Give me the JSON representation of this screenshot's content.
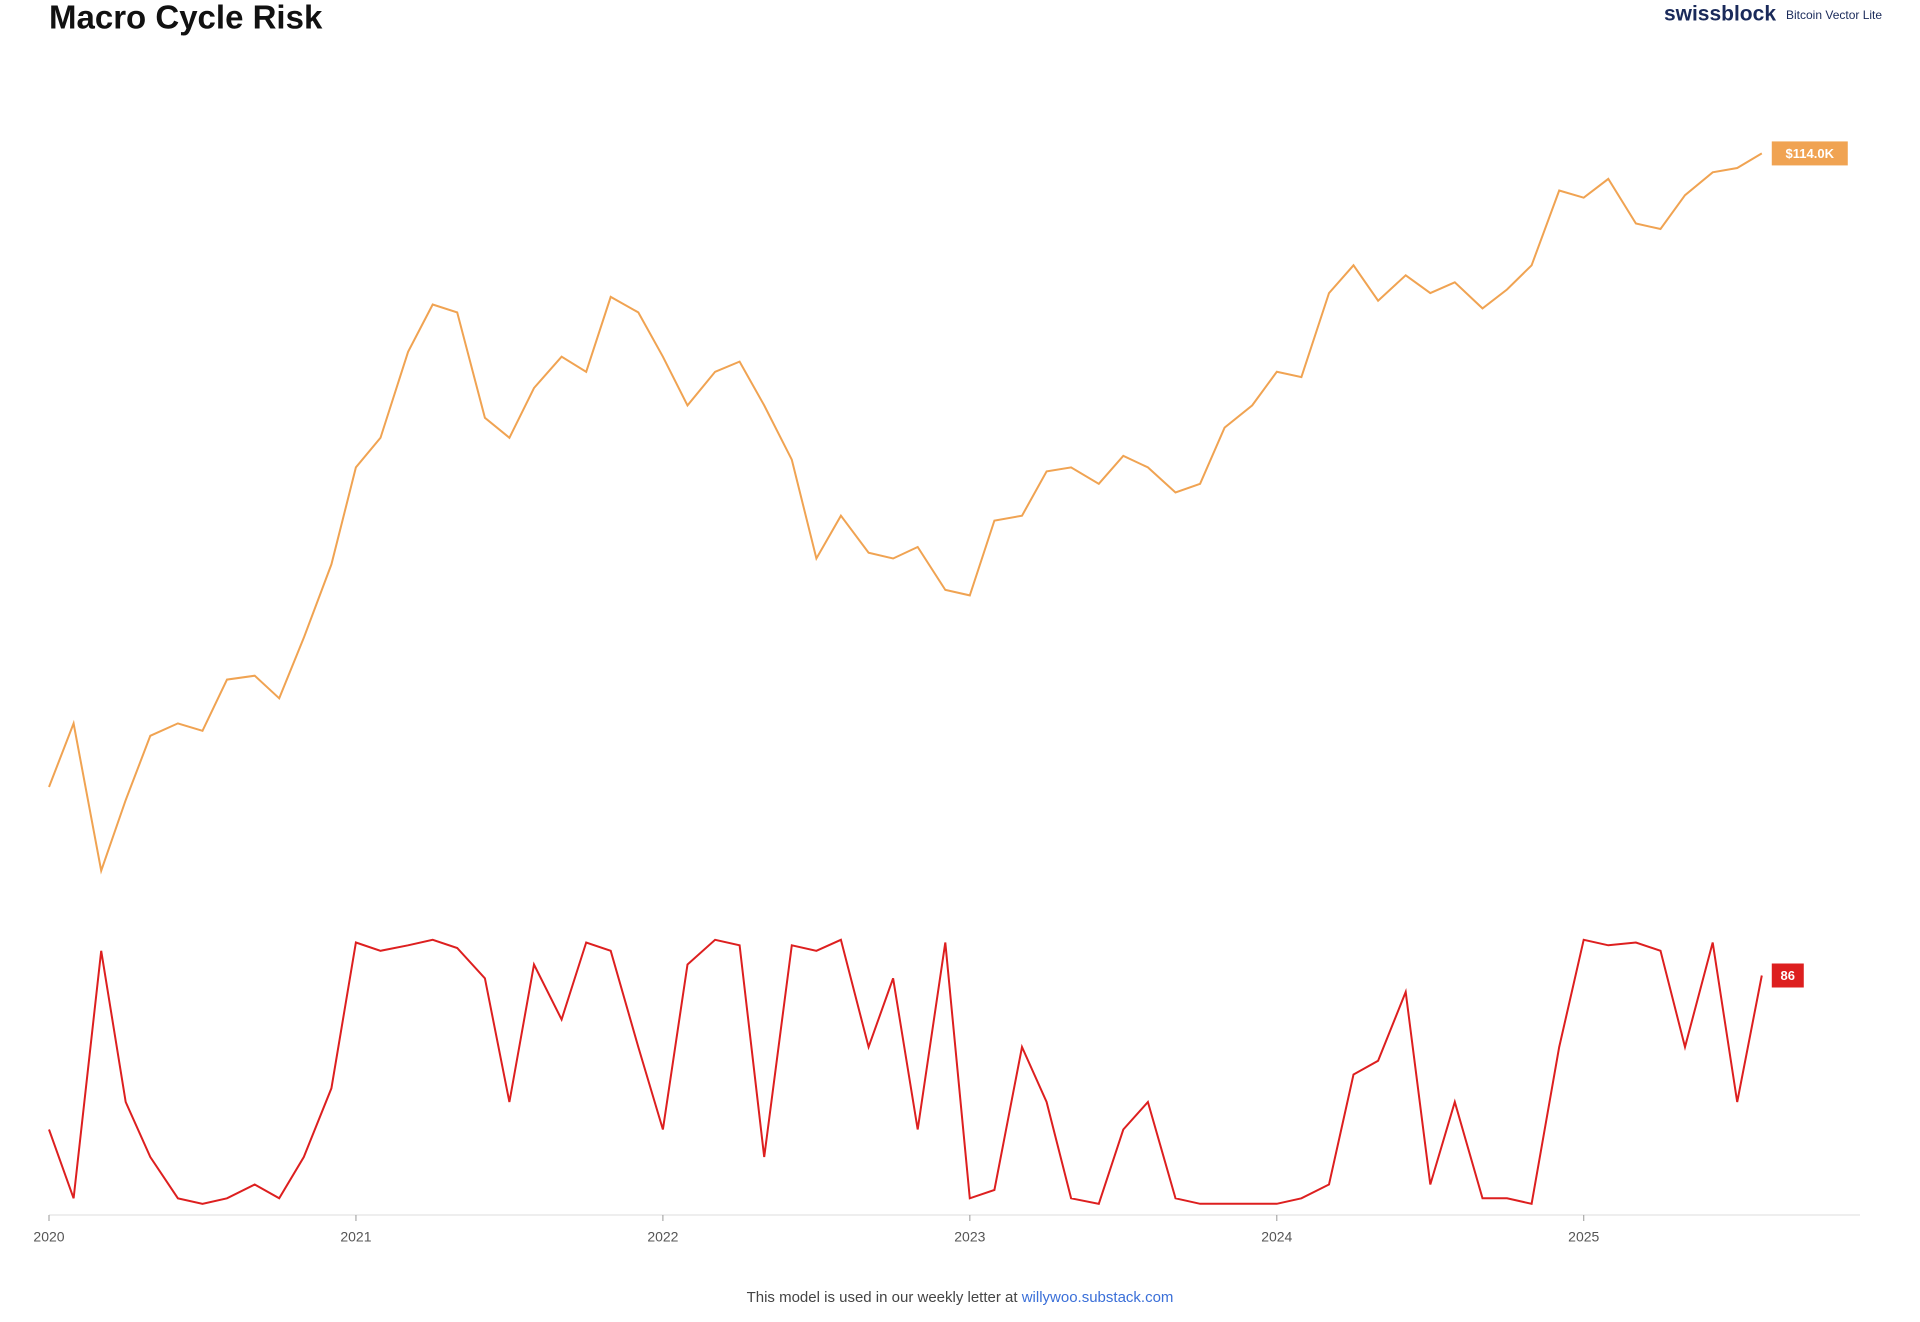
{
  "chart_data": {
    "type": "line",
    "title": "Macro Cycle Risk",
    "brand": "swissblock",
    "brand_subtitle": "Bitcoin Vector Lite",
    "footer": "This model is used in our weekly letter at",
    "footer_link": "willywoo.substack.com",
    "x": [
      2020,
      2020.08,
      2020.17,
      2020.25,
      2020.33,
      2020.42,
      2020.5,
      2020.58,
      2020.67,
      2020.75,
      2020.83,
      2020.92,
      2021,
      2021.08,
      2021.17,
      2021.25,
      2021.33,
      2021.42,
      2021.5,
      2021.58,
      2021.67,
      2021.75,
      2021.83,
      2021.92,
      2022,
      2022.08,
      2022.17,
      2022.25,
      2022.33,
      2022.42,
      2022.5,
      2022.58,
      2022.67,
      2022.75,
      2022.83,
      2022.92,
      2023,
      2023.08,
      2023.17,
      2023.25,
      2023.33,
      2023.42,
      2023.5,
      2023.58,
      2023.67,
      2023.75,
      2023.83,
      2023.92,
      2024,
      2024.08,
      2024.17,
      2024.25,
      2024.33,
      2024.42,
      2024.5,
      2024.58,
      2024.67,
      2024.75,
      2024.83,
      2024.92,
      2025,
      2025.08,
      2025.17,
      2025.25,
      2025.33,
      2025.42,
      2025.5,
      2025.58
    ],
    "xlim": [
      2020,
      2025.9
    ],
    "xticks": [
      2020,
      2021,
      2022,
      2023,
      2024,
      2025
    ],
    "ylim": [
      4400,
      157000
    ],
    "ylog": true,
    "y2lim": [
      0,
      100
    ],
    "series": [
      {
        "color": "#f0a352",
        "values": [
          7200,
          9500,
          5000,
          6800,
          9000,
          9500,
          9200,
          11500,
          11700,
          10600,
          13800,
          19000,
          29000,
          33000,
          48000,
          59000,
          57000,
          36000,
          33000,
          41000,
          47000,
          44000,
          61000,
          57000,
          47000,
          38000,
          44000,
          46000,
          38000,
          30000,
          19500,
          23500,
          20000,
          19500,
          20500,
          17000,
          16600,
          23000,
          23500,
          28500,
          29000,
          27000,
          30500,
          29000,
          26000,
          27000,
          34500,
          38000,
          44000,
          43000,
          62000,
          70000,
          60000,
          67000,
          62000,
          65000,
          58000,
          63000,
          70000,
          97000,
          94000,
          102000,
          84000,
          82000,
          95000,
          105000,
          107000,
          114000
        ],
        "value_labels": [
          null,
          null,
          null,
          null,
          null,
          null,
          null,
          null,
          null,
          null,
          null,
          null,
          null,
          null,
          null,
          null,
          null,
          null,
          null,
          null,
          null,
          null,
          null,
          null,
          null,
          null,
          null,
          null,
          null,
          null,
          null,
          null,
          null,
          null,
          null,
          null,
          null,
          null,
          null,
          null,
          null,
          null,
          null,
          null,
          null,
          null,
          null,
          null,
          null,
          null,
          null,
          null,
          null,
          null,
          null,
          null,
          null,
          null,
          null,
          null,
          null,
          null,
          null,
          null,
          null,
          null,
          null,
          "$114.0K"
        ]
      },
      {
        "color": "#dd1f1f",
        "axis": "y2",
        "values": [
          30,
          5,
          95,
          40,
          20,
          5,
          3,
          5,
          10,
          5,
          20,
          45,
          98,
          95,
          97,
          99,
          96,
          85,
          40,
          90,
          70,
          98,
          95,
          60,
          30,
          90,
          99,
          97,
          20,
          97,
          95,
          99,
          60,
          85,
          30,
          98,
          5,
          8,
          60,
          40,
          5,
          3,
          30,
          40,
          5,
          3,
          3,
          3,
          3,
          5,
          10,
          50,
          55,
          80,
          10,
          40,
          5,
          5,
          3,
          60,
          99,
          97,
          98,
          95,
          60,
          98,
          40,
          86
        ]
      }
    ]
  }
}
